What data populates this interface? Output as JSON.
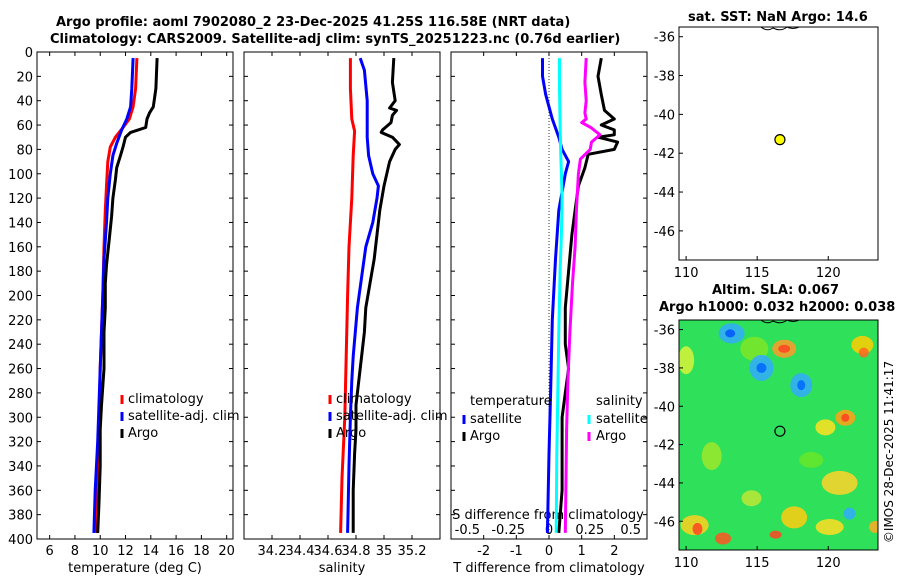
{
  "title": {
    "line1": "Argo profile: aoml 7902080_2 23-Dec-2025 41.25S 116.58E (NRT data)",
    "line2": "Climatology: CARS2009. Satellite-adj clim: synTS_20251223.nc (0.76d earlier)"
  },
  "map1": {
    "title": "sat. SST: NaN Argo: 14.6"
  },
  "map2": {
    "title1": "Altim. SLA: 0.067",
    "title2": "Argo h1000: 0.032 h2000: 0.038"
  },
  "copyright": "©IMOS 28-Dec-2025 11:41:17",
  "colors": {
    "clim": "#ff0000",
    "sat": "#0000ff",
    "argo": "#000000",
    "sal_sat": "#00ffff",
    "sal_argo": "#ff00ff"
  },
  "chart_data": [
    {
      "type": "line",
      "id": "temperature",
      "xlabel": "temperature (deg C)",
      "ylabel": "",
      "xlim": [
        5,
        20.5
      ],
      "xticks": [
        6,
        8,
        10,
        12,
        14,
        16,
        18,
        20
      ],
      "ylim": [
        0,
        400
      ],
      "yticks": [
        0,
        20,
        40,
        60,
        80,
        100,
        120,
        140,
        160,
        180,
        200,
        220,
        240,
        260,
        280,
        300,
        320,
        340,
        360,
        380,
        400
      ],
      "legend": [
        "climatology",
        "satellite-adj. clim",
        "Argo"
      ],
      "legend_position": "lower-right",
      "series": [
        {
          "name": "climatology",
          "color": "clim",
          "points": [
            [
              12.9,
              5
            ],
            [
              12.8,
              30
            ],
            [
              12.6,
              45
            ],
            [
              12.3,
              55
            ],
            [
              11.8,
              62
            ],
            [
              11.2,
              70
            ],
            [
              10.8,
              78
            ],
            [
              10.6,
              90
            ],
            [
              10.5,
              110
            ],
            [
              10.4,
              130
            ],
            [
              10.3,
              160
            ],
            [
              10.2,
              200
            ],
            [
              10.0,
              260
            ],
            [
              9.9,
              320
            ],
            [
              9.8,
              360
            ],
            [
              9.7,
              395
            ]
          ]
        },
        {
          "name": "satellite-adj. clim",
          "color": "sat",
          "points": [
            [
              12.6,
              5
            ],
            [
              12.5,
              30
            ],
            [
              12.4,
              45
            ],
            [
              12.1,
              55
            ],
            [
              11.7,
              64
            ],
            [
              11.3,
              75
            ],
            [
              11.0,
              85
            ],
            [
              10.8,
              100
            ],
            [
              10.6,
              120
            ],
            [
              10.5,
              140
            ],
            [
              10.3,
              170
            ],
            [
              10.2,
              200
            ],
            [
              10.0,
              260
            ],
            [
              9.8,
              320
            ],
            [
              9.6,
              360
            ],
            [
              9.5,
              395
            ]
          ]
        },
        {
          "name": "Argo",
          "color": "argo",
          "points": [
            [
              14.5,
              5
            ],
            [
              14.4,
              30
            ],
            [
              14.2,
              45
            ],
            [
              13.9,
              50
            ],
            [
              13.7,
              55
            ],
            [
              13.6,
              62
            ],
            [
              12.4,
              66
            ],
            [
              12.0,
              70
            ],
            [
              11.8,
              78
            ],
            [
              11.6,
              85
            ],
            [
              11.3,
              95
            ],
            [
              11.2,
              105
            ],
            [
              11.0,
              120
            ],
            [
              10.9,
              135
            ],
            [
              10.7,
              155
            ],
            [
              10.5,
              175
            ],
            [
              10.4,
              190
            ],
            [
              10.4,
              210
            ],
            [
              10.3,
              230
            ],
            [
              10.3,
              260
            ],
            [
              10.1,
              290
            ],
            [
              10.0,
              310
            ],
            [
              10.0,
              340
            ],
            [
              9.9,
              370
            ],
            [
              9.8,
              395
            ]
          ]
        }
      ]
    },
    {
      "type": "line",
      "id": "salinity",
      "xlabel": "salinity",
      "xlim": [
        34.0,
        35.4
      ],
      "xticks": [
        34.2,
        34.4,
        34.6,
        34.8,
        35,
        35.2
      ],
      "ylim": [
        0,
        400
      ],
      "legend": [
        "climatology",
        "satellite-adj. clim",
        "Argo"
      ],
      "legend_position": "lower-right",
      "series": [
        {
          "name": "climatology",
          "color": "clim",
          "points": [
            [
              34.76,
              5
            ],
            [
              34.76,
              30
            ],
            [
              34.77,
              55
            ],
            [
              34.79,
              65
            ],
            [
              34.78,
              85
            ],
            [
              34.77,
              120
            ],
            [
              34.75,
              160
            ],
            [
              34.74,
              200
            ],
            [
              34.73,
              250
            ],
            [
              34.72,
              300
            ],
            [
              34.7,
              350
            ],
            [
              34.69,
              395
            ]
          ]
        },
        {
          "name": "satellite-adj. clim",
          "color": "sat",
          "points": [
            [
              34.83,
              5
            ],
            [
              34.86,
              15
            ],
            [
              34.88,
              40
            ],
            [
              34.88,
              70
            ],
            [
              34.89,
              85
            ],
            [
              34.92,
              100
            ],
            [
              34.96,
              110
            ],
            [
              34.95,
              120
            ],
            [
              34.92,
              140
            ],
            [
              34.87,
              160
            ],
            [
              34.84,
              185
            ],
            [
              34.81,
              210
            ],
            [
              34.78,
              250
            ],
            [
              34.77,
              270
            ],
            [
              34.76,
              300
            ],
            [
              34.75,
              340
            ],
            [
              34.74,
              395
            ]
          ]
        },
        {
          "name": "Argo",
          "color": "argo",
          "points": [
            [
              35.07,
              5
            ],
            [
              35.06,
              25
            ],
            [
              35.08,
              40
            ],
            [
              35.04,
              46
            ],
            [
              35.09,
              48
            ],
            [
              35.06,
              52
            ],
            [
              35.05,
              58
            ],
            [
              34.99,
              64
            ],
            [
              34.98,
              66
            ],
            [
              35.06,
              70
            ],
            [
              35.11,
              76
            ],
            [
              35.08,
              80
            ],
            [
              35.04,
              90
            ],
            [
              35.0,
              110
            ],
            [
              34.97,
              130
            ],
            [
              34.95,
              150
            ],
            [
              34.93,
              170
            ],
            [
              34.9,
              190
            ],
            [
              34.87,
              210
            ],
            [
              34.86,
              230
            ],
            [
              34.84,
              250
            ],
            [
              34.82,
              270
            ],
            [
              34.8,
              290
            ],
            [
              34.8,
              310
            ],
            [
              34.79,
              330
            ],
            [
              34.78,
              360
            ],
            [
              34.78,
              395
            ]
          ]
        }
      ]
    },
    {
      "type": "line",
      "id": "difference",
      "xlabel": "T difference from climatology",
      "xlabel_top": "S difference from climatology",
      "xlim": [
        -3.0,
        3.0
      ],
      "xticks": [
        -2,
        -1,
        0,
        1,
        2
      ],
      "xtick_labels_top": [
        "-0.5",
        "-0.25",
        "0",
        "0.25",
        "0.5"
      ],
      "ylim": [
        0,
        400
      ],
      "legend_temperature": {
        "heading": "temperature",
        "items": [
          "satellite",
          "Argo"
        ]
      },
      "legend_salinity": {
        "heading": "salinity",
        "items": [
          "satellite",
          "Argo"
        ]
      },
      "series": [
        {
          "name": "temperature satellite",
          "color": "sat",
          "points": [
            [
              -0.2,
              5
            ],
            [
              -0.2,
              20
            ],
            [
              -0.1,
              35
            ],
            [
              0.0,
              45
            ],
            [
              0.1,
              55
            ],
            [
              0.3,
              70
            ],
            [
              0.4,
              80
            ],
            [
              0.6,
              90
            ],
            [
              0.5,
              100
            ],
            [
              0.3,
              130
            ],
            [
              0.2,
              170
            ],
            [
              0.1,
              220
            ],
            [
              0.05,
              280
            ],
            [
              0.0,
              330
            ],
            [
              -0.05,
              395
            ]
          ]
        },
        {
          "name": "temperature Argo",
          "color": "argo",
          "points": [
            [
              1.6,
              5
            ],
            [
              1.5,
              20
            ],
            [
              1.6,
              35
            ],
            [
              1.7,
              48
            ],
            [
              2.0,
              55
            ],
            [
              1.6,
              60
            ],
            [
              2.0,
              64
            ],
            [
              2.0,
              68
            ],
            [
              1.5,
              70
            ],
            [
              2.1,
              74
            ],
            [
              2.0,
              80
            ],
            [
              1.2,
              84
            ],
            [
              1.1,
              95
            ],
            [
              0.9,
              110
            ],
            [
              0.8,
              130
            ],
            [
              0.7,
              150
            ],
            [
              0.6,
              180
            ],
            [
              0.5,
              210
            ],
            [
              0.5,
              240
            ],
            [
              0.6,
              260
            ],
            [
              0.5,
              280
            ],
            [
              0.4,
              300
            ],
            [
              0.4,
              330
            ],
            [
              0.4,
              360
            ],
            [
              0.3,
              395
            ]
          ]
        },
        {
          "name": "salinity satellite",
          "color": "sal_sat",
          "points": [
            [
              0.32,
              5
            ],
            [
              0.32,
              30
            ],
            [
              0.34,
              60
            ],
            [
              0.36,
              85
            ],
            [
              0.38,
              100
            ],
            [
              0.4,
              120
            ],
            [
              0.38,
              150
            ],
            [
              0.34,
              180
            ],
            [
              0.3,
              230
            ],
            [
              0.27,
              280
            ],
            [
              0.24,
              330
            ],
            [
              0.22,
              395
            ]
          ]
        },
        {
          "name": "salinity Argo",
          "color": "sal_argo",
          "points": [
            [
              1.14,
              5
            ],
            [
              1.1,
              25
            ],
            [
              1.14,
              40
            ],
            [
              1.1,
              50
            ],
            [
              1.14,
              55
            ],
            [
              1.0,
              58
            ],
            [
              1.28,
              62
            ],
            [
              1.56,
              68
            ],
            [
              1.3,
              74
            ],
            [
              1.26,
              80
            ],
            [
              0.96,
              88
            ],
            [
              0.9,
              100
            ],
            [
              0.84,
              130
            ],
            [
              0.8,
              160
            ],
            [
              0.72,
              190
            ],
            [
              0.64,
              230
            ],
            [
              0.58,
              270
            ],
            [
              0.54,
              310
            ],
            [
              0.52,
              350
            ],
            [
              0.5,
              395
            ]
          ]
        }
      ]
    },
    {
      "type": "scatter",
      "id": "sst-map",
      "title": "sat. SST: NaN Argo: 14.6",
      "xlim": [
        109.5,
        123.5
      ],
      "xticks": [
        110,
        115,
        120
      ],
      "ylim": [
        -47.5,
        -35.5
      ],
      "yticks": [
        -36,
        -38,
        -40,
        -42,
        -44,
        -46
      ],
      "points": [
        [
          116.6,
          -41.3
        ]
      ]
    },
    {
      "type": "heatmap",
      "id": "sla-map",
      "title": "Altim. SLA: 0.067",
      "xlim": [
        109.5,
        123.5
      ],
      "xticks": [
        110,
        115,
        120
      ],
      "ylim": [
        -47.5,
        -35.5
      ],
      "yticks": [
        -36,
        -38,
        -40,
        -42,
        -44,
        -46
      ],
      "points": [
        [
          116.6,
          -41.3
        ]
      ]
    }
  ]
}
